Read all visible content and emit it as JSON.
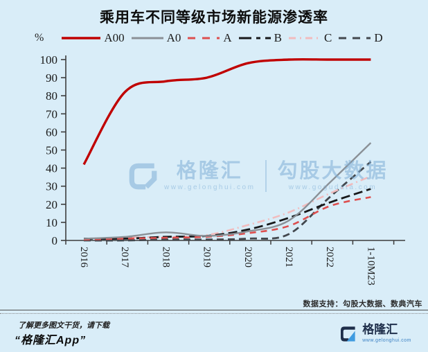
{
  "title": "乘用车不同等级市场新能源渗透率",
  "colors": {
    "background": "#d9edf8",
    "axis": "#3c3c3c",
    "watermark": "#7fafd6",
    "logo_navy": "#1e2e4a",
    "logo_blue": "#3f9be0"
  },
  "chart_data": {
    "type": "line",
    "title": "乘用车不同等级市场新能源渗透率",
    "y_unit": "%",
    "ylim": [
      0,
      100
    ],
    "ytick_step": 10,
    "grid": false,
    "legend_position": "top",
    "categories": [
      "2016",
      "2017",
      "2018",
      "2019",
      "2020",
      "2021",
      "2022",
      "1-10M23"
    ],
    "series": [
      {
        "name": "A00",
        "color": "#c00000",
        "dash": "",
        "legend_dash": "",
        "width": 3.4,
        "values": [
          42,
          82,
          88,
          90,
          98,
          100,
          100,
          100
        ]
      },
      {
        "name": "A0",
        "color": "#8a9096",
        "dash": "",
        "legend_dash": "",
        "width": 2.4,
        "values": [
          1,
          2,
          4.5,
          2.5,
          5,
          11,
          32,
          54
        ]
      },
      {
        "name": "A",
        "color": "#dd4f4f",
        "dash": "9 7",
        "legend_dash": "11 10",
        "width": 2.6,
        "values": [
          0.5,
          1,
          1.5,
          2,
          4,
          8,
          19,
          24
        ]
      },
      {
        "name": "B",
        "color": "#17181a",
        "dash": "13 6",
        "legend_dash": "18 7 6 7",
        "width": 2.8,
        "values": [
          1,
          1,
          2,
          2.5,
          6,
          12.5,
          21,
          28.5
        ]
      },
      {
        "name": "C",
        "color": "#f1bcbe",
        "dash": "11 5 2 5",
        "legend_dash": "10 6 2 6",
        "width": 2.6,
        "values": [
          1,
          1.5,
          2,
          3,
          8.5,
          15.5,
          26,
          35.5
        ]
      },
      {
        "name": "D",
        "color": "#43484e",
        "dash": "10 6",
        "legend_dash": "11 9",
        "width": 2.8,
        "values": [
          0,
          0,
          0.5,
          0.5,
          1,
          3.5,
          24,
          43.5
        ]
      }
    ]
  },
  "watermark": {
    "brand": "格隆汇",
    "brand_url": "www.gelonghui.com",
    "partner": "勾股大数据",
    "partner_url": "www.gogudata.com"
  },
  "data_support": "数据支持：勾股大数据、数典汽车",
  "footer": {
    "promo_line1": "了解更多图文干货，请下载",
    "promo_line2": "“格隆汇App”",
    "logo_text": "格隆汇",
    "logo_url": "www.gelonghui.com"
  }
}
